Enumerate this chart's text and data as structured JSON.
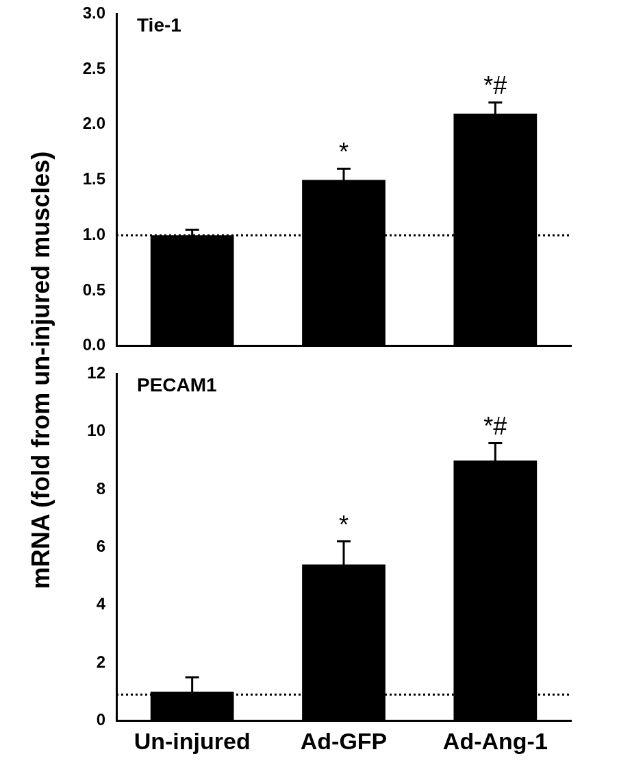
{
  "chart_data": [
    {
      "type": "bar",
      "title": "Tie-1",
      "ylabel": "mRNA (fold from un-injured muscles)",
      "categories": [
        "Un-injured",
        "Ad-GFP",
        "Ad-Ang-1"
      ],
      "values": [
        1.0,
        1.5,
        2.1
      ],
      "errors": [
        0.05,
        0.1,
        0.1
      ],
      "color": "#000000",
      "ylim": [
        0,
        3
      ],
      "yticks": [
        {
          "value": 0,
          "label": "0.0"
        },
        {
          "value": 0.5,
          "label": "0.5"
        },
        {
          "value": 1,
          "label": "1.0"
        },
        {
          "value": 1.5,
          "label": "1.5"
        },
        {
          "value": 2,
          "label": "2.0"
        },
        {
          "value": 2.5,
          "label": "2.5"
        },
        {
          "value": 3,
          "label": "3.0"
        }
      ],
      "grid": false,
      "legend": false,
      "tick_labels": "y",
      "ref_lines": [
        {
          "axis": "y",
          "value": 1.0,
          "line_style": "dotted",
          "color": "#000000"
        }
      ],
      "annotations": [
        {
          "text": "*",
          "x": "Ad-GFP",
          "y": 1.6
        },
        {
          "text": "*#",
          "x": "Ad-Ang-1",
          "y": 2.2
        }
      ]
    },
    {
      "type": "bar",
      "title": "PECAM1",
      "categories": [
        "Un-injured",
        "Ad-GFP",
        "Ad-Ang-1"
      ],
      "values": [
        1.0,
        5.4,
        9.0
      ],
      "errors": [
        0.5,
        0.8,
        0.6
      ],
      "color": "#000000",
      "ylim": [
        0,
        12
      ],
      "yticks": [
        0,
        2,
        4,
        6,
        8,
        10,
        12
      ],
      "grid": false,
      "legend": false,
      "ref_lines": [
        {
          "axis": "y",
          "value": 0.9,
          "line_style": "dotted",
          "color": "#000000"
        }
      ],
      "annotations": [
        {
          "text": "*",
          "x": "Ad-GFP",
          "y": 6.2
        },
        {
          "text": "*#",
          "x": "Ad-Ang-1",
          "y": 9.6
        }
      ]
    }
  ]
}
